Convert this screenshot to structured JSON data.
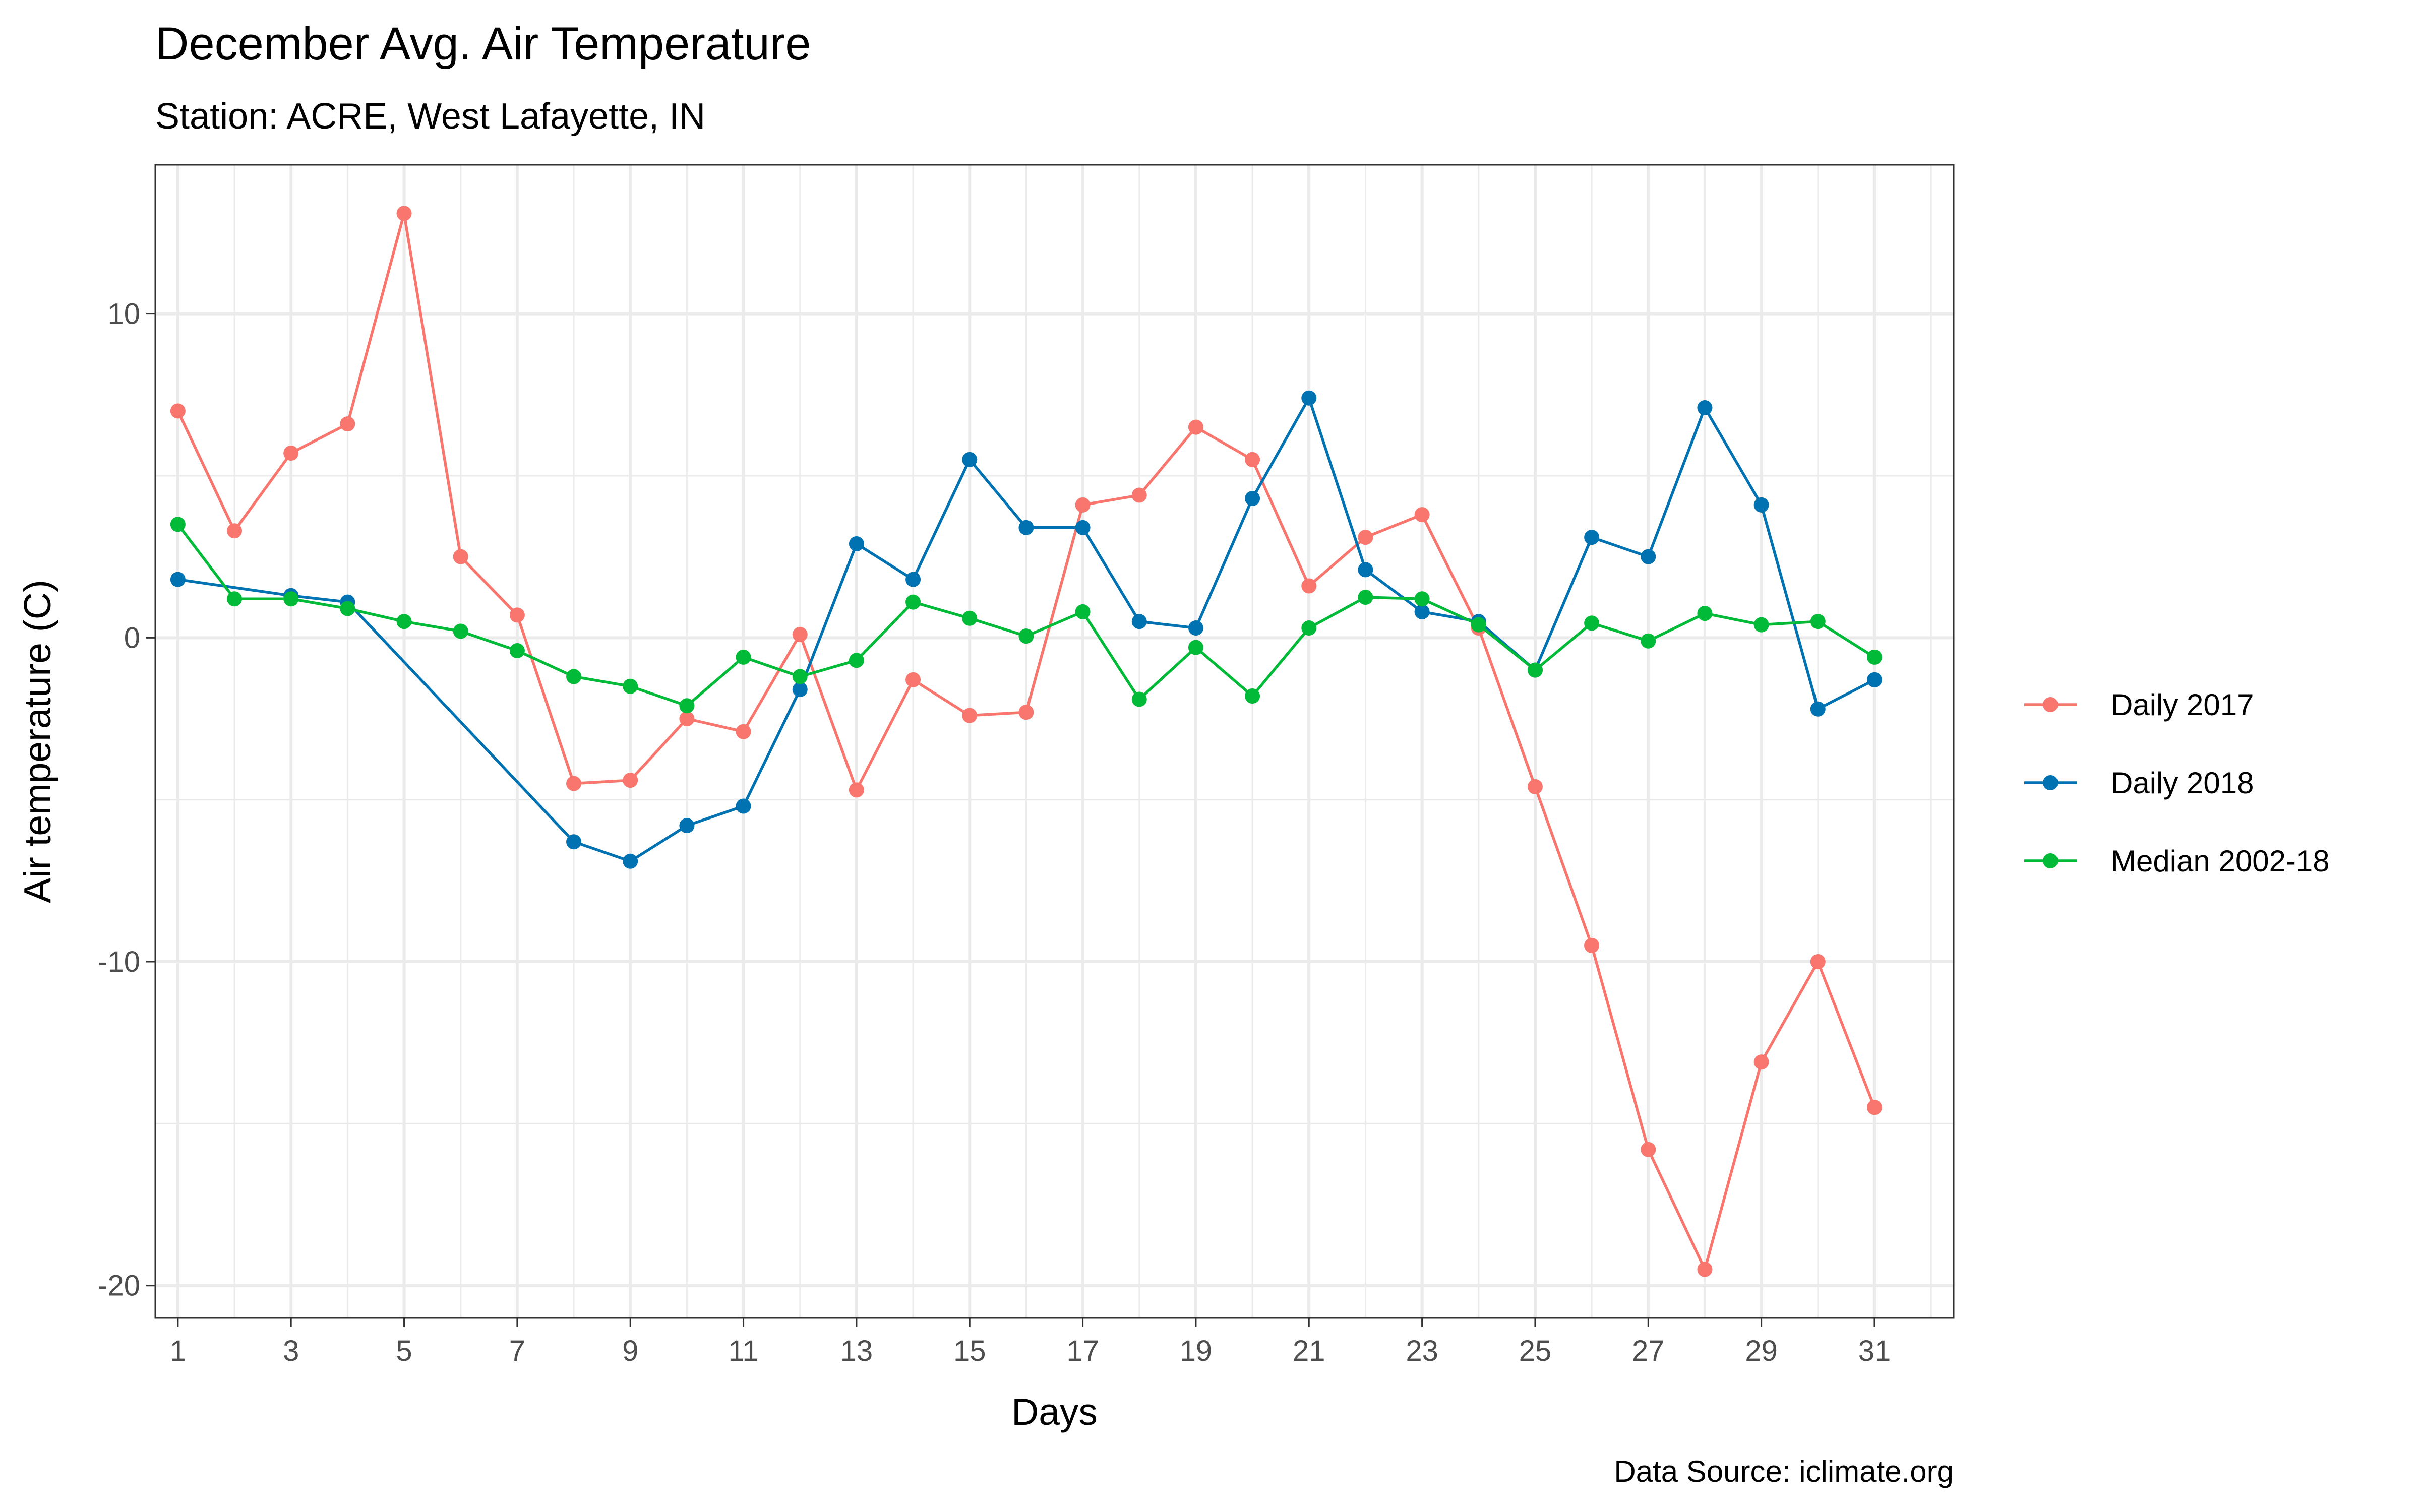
{
  "chart_data": {
    "type": "line",
    "title": "December Avg. Air Temperature",
    "subtitle": "Station: ACRE, West Lafayette, IN",
    "xlabel": "Days",
    "ylabel": "Air temperature (C)",
    "caption": "Data Source: iclimate.org",
    "xlim": [
      0.6,
      32.4
    ],
    "ylim": [
      -21,
      14.6
    ],
    "x_ticks": [
      "1",
      "3",
      "5",
      "7",
      "9",
      "11",
      "13",
      "15",
      "17",
      "19",
      "21",
      "23",
      "25",
      "27",
      "29",
      "31"
    ],
    "y_ticks": [
      "10",
      "0",
      "-10",
      "-20"
    ],
    "grid": true,
    "legend_position": "right",
    "series": [
      {
        "name": "Daily 2017",
        "color": "#F8766D",
        "x": [
          1,
          2,
          3,
          4,
          5,
          6,
          7,
          8,
          9,
          10,
          11,
          12,
          13,
          14,
          15,
          16,
          17,
          18,
          19,
          20,
          21,
          22,
          23,
          24,
          25,
          26,
          27,
          28,
          29,
          30,
          31
        ],
        "y": [
          7.0,
          3.3,
          5.7,
          6.6,
          13.1,
          2.5,
          0.7,
          -4.5,
          -4.4,
          -2.5,
          -2.9,
          0.1,
          -4.7,
          -1.3,
          -2.4,
          -2.3,
          4.1,
          4.4,
          6.5,
          5.5,
          1.6,
          3.1,
          3.8,
          0.3,
          -4.6,
          -9.5,
          -15.8,
          -19.5,
          -13.1,
          -10.0,
          -14.5
        ]
      },
      {
        "name": "Daily 2018",
        "color": "#0072B2",
        "x": [
          1,
          3,
          4,
          8,
          9,
          10,
          11,
          12,
          13,
          14,
          15,
          16,
          17,
          18,
          19,
          20,
          21,
          22,
          23,
          24,
          25,
          26,
          27,
          28,
          29,
          30,
          31
        ],
        "y": [
          1.8,
          1.3,
          1.1,
          -6.3,
          -6.9,
          -5.8,
          -5.2,
          -1.6,
          2.9,
          1.8,
          5.5,
          3.4,
          3.4,
          0.5,
          0.3,
          4.3,
          7.4,
          2.1,
          0.8,
          0.5,
          -1.0,
          3.1,
          2.5,
          7.1,
          4.1,
          -2.2,
          -1.3
        ]
      },
      {
        "name": "Median 2002-18",
        "color": "#00BA38",
        "x": [
          1,
          2,
          3,
          4,
          5,
          6,
          7,
          8,
          9,
          10,
          11,
          12,
          13,
          14,
          15,
          16,
          17,
          18,
          19,
          20,
          21,
          22,
          23,
          24,
          25,
          26,
          27,
          28,
          29,
          30,
          31
        ],
        "y": [
          3.5,
          1.2,
          1.2,
          0.9,
          0.5,
          0.2,
          -0.4,
          -1.2,
          -1.5,
          -2.1,
          -0.6,
          -1.2,
          -0.7,
          1.1,
          0.6,
          0.05,
          0.8,
          -1.9,
          -0.3,
          -1.8,
          0.3,
          1.25,
          1.2,
          0.4,
          -1.0,
          0.45,
          -0.1,
          0.75,
          0.4,
          0.5,
          -0.6
        ]
      }
    ]
  }
}
